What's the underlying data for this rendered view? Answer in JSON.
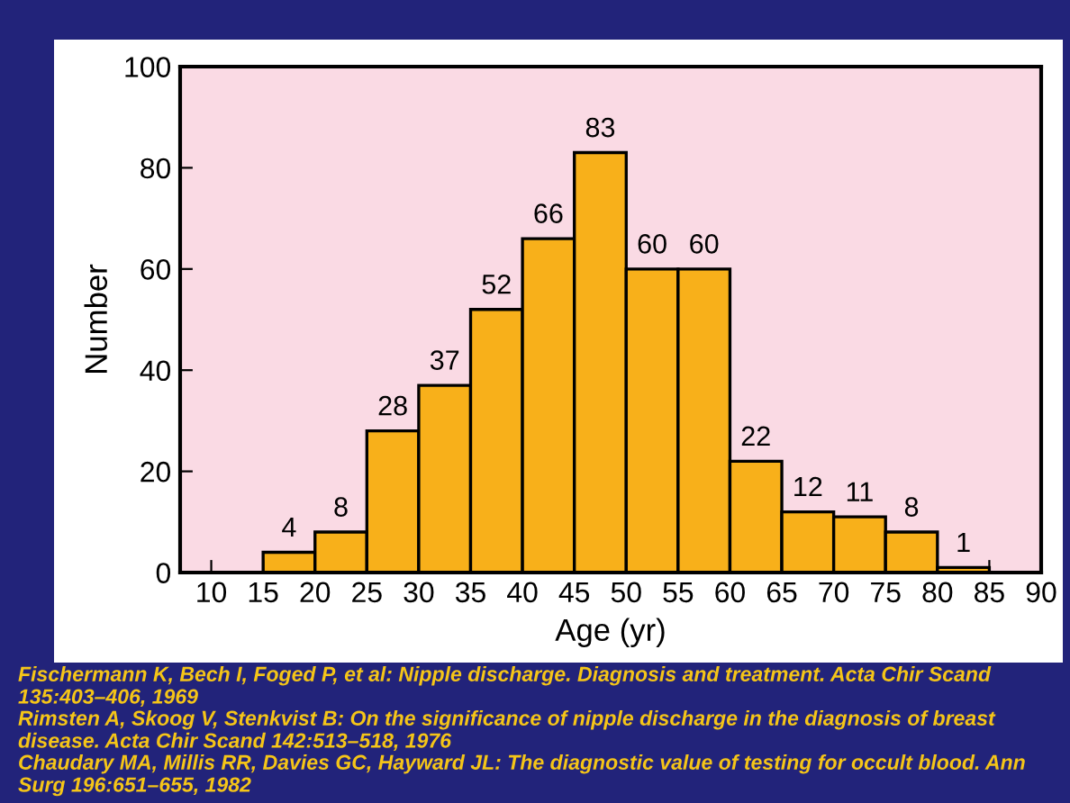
{
  "chart_data": {
    "type": "histogram",
    "xlabel": "Age (yr)",
    "ylabel": "Number",
    "bins": [
      15,
      20,
      25,
      30,
      35,
      40,
      45,
      50,
      55,
      60,
      65,
      70,
      75,
      80,
      85
    ],
    "values": [
      4,
      8,
      28,
      37,
      52,
      66,
      83,
      60,
      60,
      22,
      12,
      11,
      8,
      1
    ],
    "color": "#f8b01a",
    "data_labels": true,
    "grid": false,
    "xlim": [
      7,
      90
    ],
    "xticks": [
      10,
      15,
      20,
      25,
      30,
      35,
      40,
      45,
      50,
      55,
      60,
      65,
      70,
      75,
      80,
      85,
      90
    ],
    "ylim": [
      0,
      100
    ],
    "yticks": [
      0,
      20,
      40,
      60,
      80,
      100
    ],
    "annotations": [
      "Fischermann K, Bech I, Foged P, et al: Nipple discharge. Diagnosis and treatment. Acta Chir Scand 135:403–406, 1969",
      "Rimsten A, Skoog V, Stenkvist B: On the significance of nipple discharge in the diagnosis of breast disease. Acta Chir Scand 142:513–518, 1976",
      "Chaudary MA, Millis RR, Davies GC, Hayward JL: The diagnostic value of testing for occult blood. Ann Surg 196:651–655, 1982"
    ]
  }
}
